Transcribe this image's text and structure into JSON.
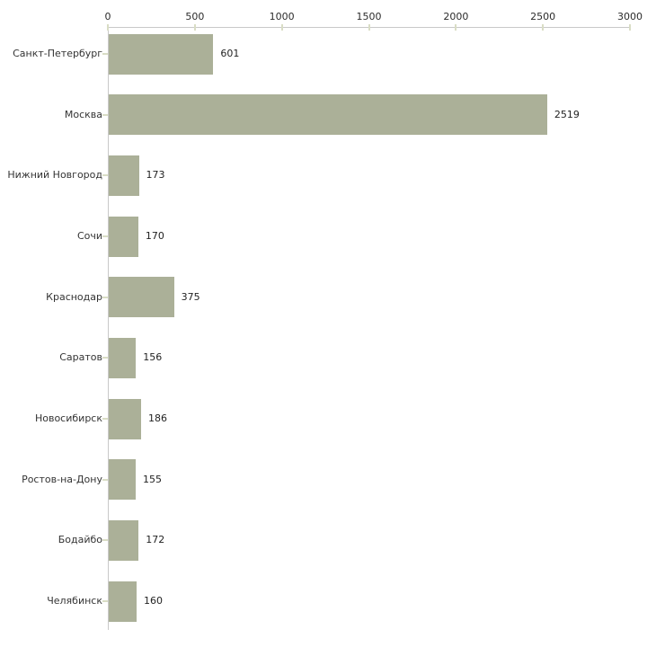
{
  "chart_data": {
    "type": "bar",
    "orientation": "horizontal",
    "title": "",
    "xlabel": "",
    "ylabel": "",
    "axis_position": "top",
    "grid": false,
    "legend": false,
    "categories": [
      "Санкт-Петербург",
      "Москва",
      "Нижний Новгород",
      "Сочи",
      "Краснодар",
      "Саратов",
      "Новосибирск",
      "Ростов-на-Дону",
      "Бодайбо",
      "Челябинск"
    ],
    "values": [
      601,
      2519,
      173,
      170,
      375,
      156,
      186,
      155,
      172,
      160
    ],
    "value_labels": [
      "601",
      "2519",
      "173",
      "170",
      "375",
      "156",
      "186",
      "155",
      "172",
      "160"
    ],
    "x_ticks": [
      0,
      500,
      1000,
      1500,
      2000,
      2500,
      3000
    ],
    "x_tick_labels": [
      "0",
      "500",
      "1000",
      "1500",
      "2000",
      "2500",
      "3000"
    ],
    "xlim": [
      0,
      3000
    ],
    "colors": {
      "bar": "#ABB098",
      "axis_line": "#C9C9C9",
      "tick_mark": "#D9DDC5",
      "text": "#333333",
      "background": "#FFFFFF"
    }
  }
}
